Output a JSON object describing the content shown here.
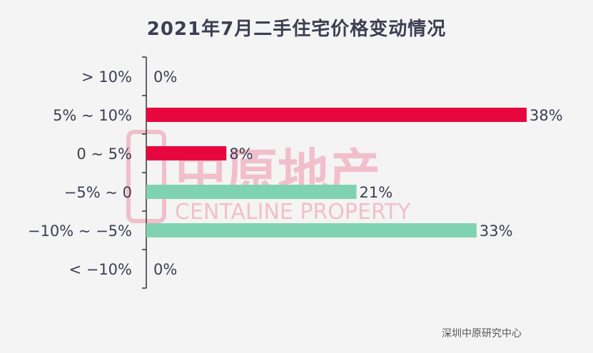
{
  "chart_data": {
    "type": "bar",
    "orientation": "horizontal",
    "title": "2021年7月二手住宅价格变动情况",
    "categories": [
      "> 10%",
      "5% ~ 10%",
      "0 ~ 5%",
      "−5% ~ 0",
      "−10% ~ −5%",
      "< −10%"
    ],
    "values": [
      0,
      38,
      8,
      21,
      33,
      0
    ],
    "value_labels": [
      "0%",
      "38%",
      "8%",
      "21%",
      "33%",
      "0%"
    ],
    "xlim": [
      0,
      38
    ],
    "colors": [
      "#e8063e",
      "#e8063e",
      "#e8063e",
      "#7fd3b4",
      "#7fd3b4",
      "#7fd3b4"
    ],
    "grid": false,
    "legend": "none"
  },
  "watermark": {
    "cn": "中原地产",
    "en": "CENTALINE PROPERTY"
  },
  "source": "深圳中原研究中心"
}
